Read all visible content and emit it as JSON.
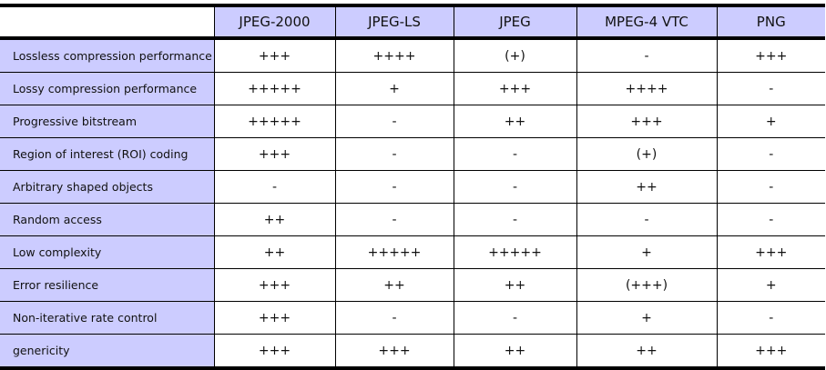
{
  "table": {
    "columns": [
      "JPEG-2000",
      "JPEG-LS",
      "JPEG",
      "MPEG-4 VTC",
      "PNG"
    ],
    "rows": [
      {
        "feature": "Lossless compression performance",
        "values": [
          "+++",
          "++++",
          "(+)",
          "-",
          "+++"
        ]
      },
      {
        "feature": "Lossy compression performance",
        "values": [
          "+++++",
          "+",
          "+++",
          "++++",
          "-"
        ]
      },
      {
        "feature": "Progressive bitstream",
        "values": [
          "+++++",
          "-",
          "++",
          "+++",
          "+"
        ]
      },
      {
        "feature": "Region of interest (ROI) coding",
        "values": [
          "+++",
          "-",
          "-",
          "(+)",
          "-"
        ]
      },
      {
        "feature": "Arbitrary shaped objects",
        "values": [
          "-",
          "-",
          "-",
          "++",
          "-"
        ]
      },
      {
        "feature": "Random access",
        "values": [
          "++",
          "-",
          "-",
          "-",
          "-"
        ]
      },
      {
        "feature": "Low complexity",
        "values": [
          "++",
          "+++++",
          "+++++",
          "+",
          "+++"
        ]
      },
      {
        "feature": "Error resilience",
        "values": [
          "+++",
          "++",
          "++",
          "(+++)",
          "+"
        ]
      },
      {
        "feature": "Non-iterative rate control",
        "values": [
          "+++",
          "-",
          "-",
          "+",
          "-"
        ]
      },
      {
        "feature": "genericity",
        "values": [
          "+++",
          "+++",
          "++",
          "++",
          "+++"
        ]
      }
    ]
  },
  "colors": {
    "header_bg": "#ccccff",
    "label_bg": "#ccccff"
  }
}
